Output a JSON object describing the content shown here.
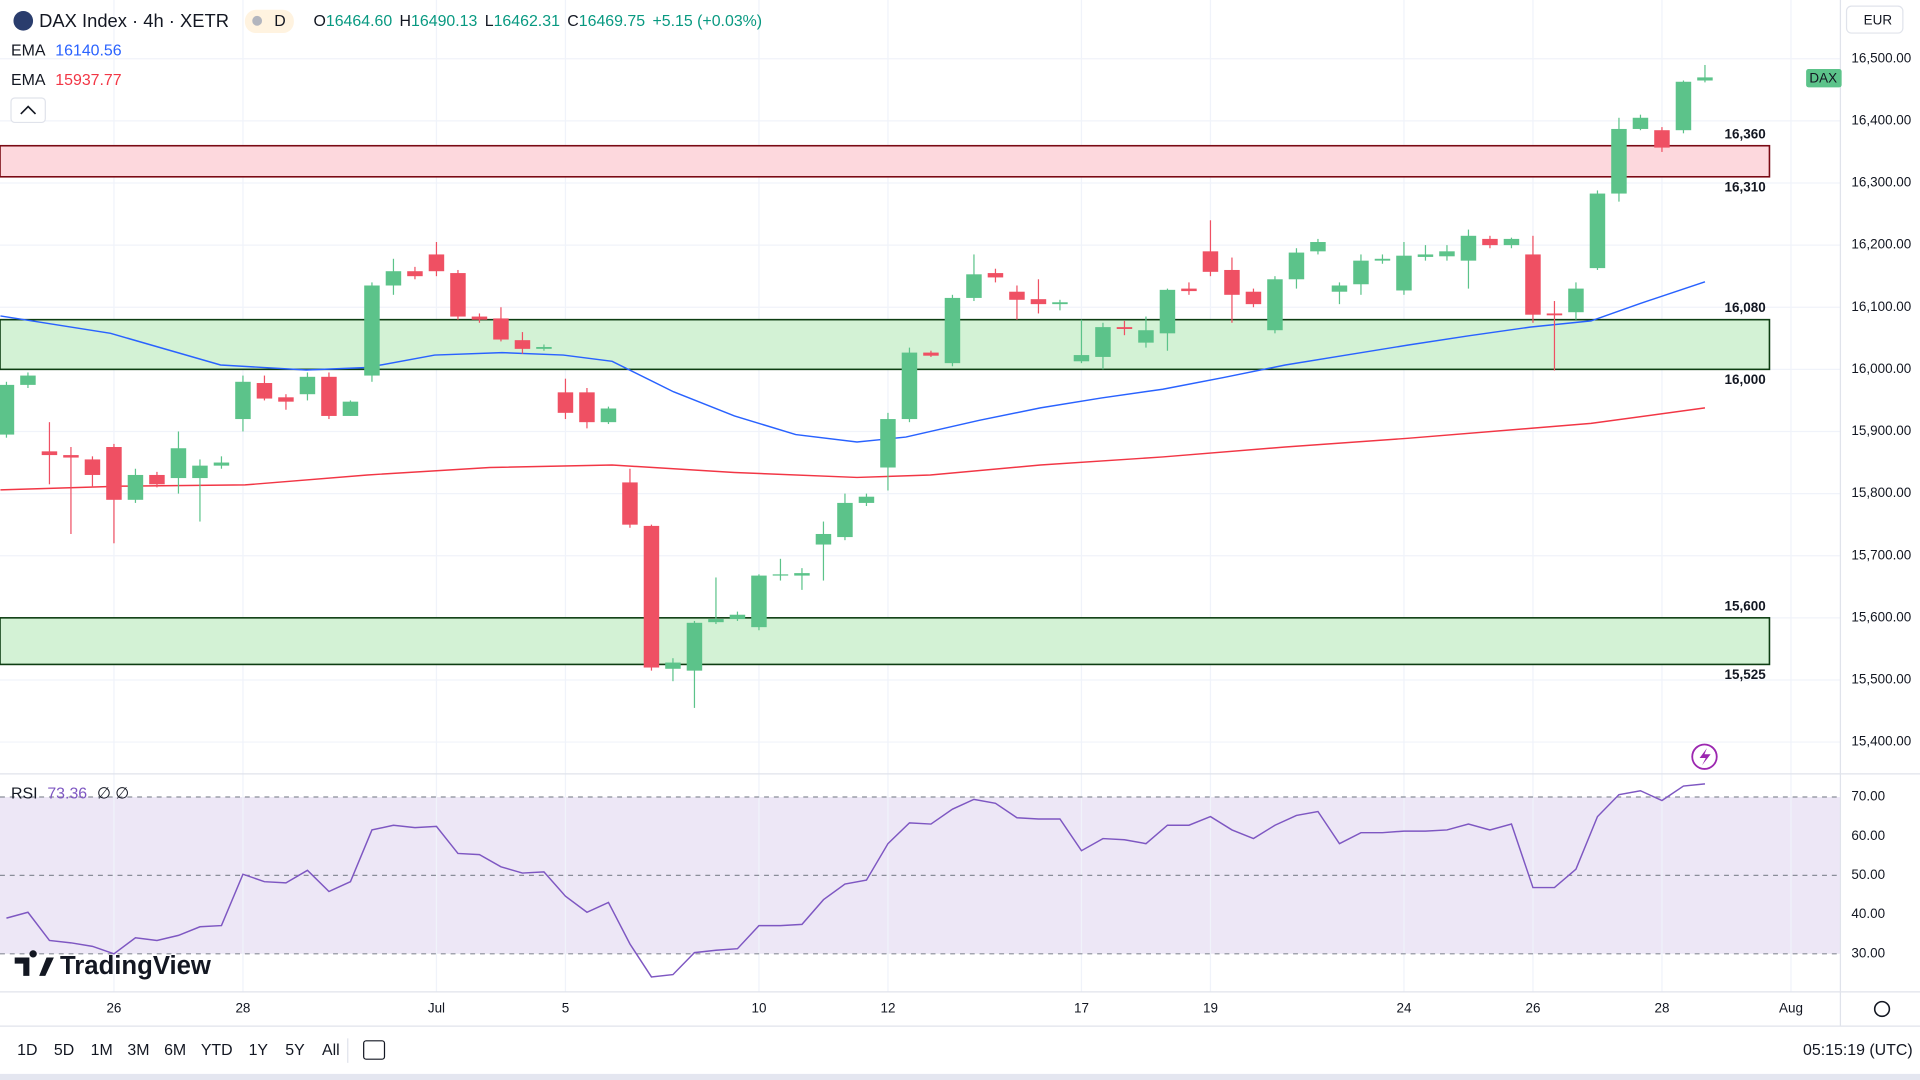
{
  "header": {
    "symbol": "DAX Index · 4h · XETR",
    "badge": "D",
    "ohlc": [
      {
        "label": "O",
        "value": "16464.60"
      },
      {
        "label": "H",
        "value": "16490.13"
      },
      {
        "label": "L",
        "value": "16462.31"
      },
      {
        "label": "C",
        "value": "16469.75"
      }
    ],
    "change": "+5.15 (+0.03%)",
    "currency": "EUR",
    "price_tag": "DAX"
  },
  "chart_data": [
    {
      "type": "candlestick",
      "up_color": "#5cc38a",
      "down_color": "#ef5063",
      "candles": [
        [
          15895,
          15980,
          15890,
          15975
        ],
        [
          15975,
          15995,
          15970,
          15990
        ],
        [
          15868,
          15915,
          15815,
          15862
        ],
        [
          15862,
          15875,
          15735,
          15858
        ],
        [
          15855,
          15860,
          15810,
          15830
        ],
        [
          15875,
          15880,
          15720,
          15790
        ],
        [
          15790,
          15840,
          15785,
          15830
        ],
        [
          15830,
          15835,
          15810,
          15815
        ],
        [
          15825,
          15900,
          15800,
          15873
        ],
        [
          15825,
          15855,
          15755,
          15845
        ],
        [
          15845,
          15860,
          15840,
          15850
        ],
        [
          15920,
          15990,
          15900,
          15980
        ],
        [
          15978,
          15990,
          15950,
          15953
        ],
        [
          15955,
          15960,
          15935,
          15948
        ],
        [
          15960,
          15995,
          15950,
          15988
        ],
        [
          15988,
          15995,
          15920,
          15925
        ],
        [
          15925,
          15950,
          15925,
          15948
        ],
        [
          15990,
          16140,
          15980,
          16135
        ],
        [
          16135,
          16178,
          16120,
          16158
        ],
        [
          16158,
          16165,
          16145,
          16150
        ],
        [
          16185,
          16205,
          16150,
          16158
        ],
        [
          16155,
          16160,
          16080,
          16085
        ],
        [
          16085,
          16090,
          16075,
          16080
        ],
        [
          16082,
          16100,
          16045,
          16048
        ],
        [
          16047,
          16060,
          16025,
          16033
        ],
        [
          16033,
          16040,
          16030,
          16036
        ],
        [
          15963,
          15985,
          15920,
          15930
        ],
        [
          15963,
          15970,
          15905,
          15915
        ],
        [
          15915,
          15940,
          15912,
          15937
        ],
        [
          15818,
          15840,
          15745,
          15750
        ],
        [
          15748,
          15750,
          15515,
          15520
        ],
        [
          15518,
          15535,
          15498,
          15528
        ],
        [
          15515,
          15595,
          15455,
          15592
        ],
        [
          15593,
          15665,
          15590,
          15598
        ],
        [
          15598,
          15610,
          15595,
          15605
        ],
        [
          15585,
          15670,
          15580,
          15668
        ],
        [
          15668,
          15695,
          15660,
          15670
        ],
        [
          15668,
          15680,
          15645,
          15672
        ],
        [
          15718,
          15755,
          15660,
          15735
        ],
        [
          15730,
          15800,
          15725,
          15785
        ],
        [
          15785,
          15800,
          15780,
          15795
        ],
        [
          15842,
          15930,
          15805,
          15920
        ],
        [
          15920,
          16035,
          15915,
          16027
        ],
        [
          16027,
          16030,
          16020,
          16022
        ],
        [
          16010,
          16120,
          16005,
          16115
        ],
        [
          16115,
          16185,
          16110,
          16153
        ],
        [
          16155,
          16162,
          16140,
          16148
        ],
        [
          16125,
          16135,
          16080,
          16112
        ],
        [
          16113,
          16145,
          16090,
          16105
        ],
        [
          16105,
          16112,
          16095,
          16108
        ],
        [
          16013,
          16080,
          16010,
          16023
        ],
        [
          16020,
          16075,
          16000,
          16068
        ],
        [
          16068,
          16078,
          16055,
          16065
        ],
        [
          16043,
          16085,
          16035,
          16063
        ],
        [
          16058,
          16130,
          16030,
          16128
        ],
        [
          16130,
          16140,
          16120,
          16126
        ],
        [
          16190,
          16240,
          16150,
          16157
        ],
        [
          16160,
          16180,
          16075,
          16120
        ],
        [
          16125,
          16130,
          16100,
          16105
        ],
        [
          16063,
          16150,
          16058,
          16145
        ],
        [
          16145,
          16195,
          16130,
          16188
        ],
        [
          16190,
          16210,
          16185,
          16205
        ],
        [
          16125,
          16140,
          16105,
          16135
        ],
        [
          16137,
          16185,
          16120,
          16175
        ],
        [
          16175,
          16185,
          16170,
          16178
        ],
        [
          16127,
          16205,
          16120,
          16183
        ],
        [
          16181,
          16200,
          16175,
          16185
        ],
        [
          16182,
          16200,
          16175,
          16190
        ],
        [
          16175,
          16225,
          16130,
          16215
        ],
        [
          16210,
          16215,
          16195,
          16200
        ],
        [
          16200,
          16212,
          16195,
          16210
        ],
        [
          16185,
          16215,
          16075,
          16088
        ],
        [
          16090,
          16110,
          15998,
          16087
        ],
        [
          16092,
          16140,
          16080,
          16130
        ],
        [
          16163,
          16288,
          16160,
          16283
        ],
        [
          16283,
          16405,
          16270,
          16387
        ],
        [
          16387,
          16410,
          16385,
          16405
        ],
        [
          16385,
          16390,
          16350,
          16357
        ],
        [
          16385,
          16465,
          16380,
          16463
        ],
        [
          16465,
          16490,
          16462,
          16470
        ]
      ],
      "series": [
        {
          "name": "EMA",
          "value_label": "16140.56",
          "color": "#2962ff",
          "x": [
            -0.28,
            4.84,
            9.96,
            13.94,
            16.79,
            19.92,
            23.05,
            25.9,
            28.17,
            31.02,
            33.86,
            36.71,
            39.56,
            41.83,
            45.25,
            48.09,
            50.94,
            53.78,
            56.63,
            59.48,
            62.32,
            65.17,
            68.01,
            70.86,
            73.7,
            75.98,
            79
          ],
          "values": [
            16086,
            16058,
            16007,
            15999,
            16003,
            16023,
            16027,
            16023,
            16013,
            15964,
            15925,
            15895,
            15883,
            15891,
            15918,
            15938,
            15954,
            15968,
            15987,
            16007,
            16023,
            16039,
            16054,
            16068,
            16078,
            16106,
            16141
          ]
        },
        {
          "name": "EMA",
          "value_label": "15937.77",
          "color": "#f23645",
          "x": [
            -0.28,
            5.41,
            11.1,
            16.79,
            22.48,
            28.17,
            33.86,
            39.56,
            42.97,
            48.09,
            53.78,
            59.48,
            65.17,
            70.86,
            73.7,
            79
          ],
          "values": [
            15806,
            15812,
            15814,
            15830,
            15842,
            15846,
            15834,
            15826,
            15830,
            15846,
            15859,
            15875,
            15889,
            15905,
            15913,
            15938
          ]
        }
      ],
      "zones": [
        {
          "low": 16310,
          "high": 16360,
          "low_label": "16,310",
          "high_label": "16,360",
          "fill": "#fdd8dd",
          "stroke": "#7a0a14"
        },
        {
          "low": 16000,
          "high": 16080,
          "low_label": "16,000",
          "high_label": "16,080",
          "fill": "#d3f2d5",
          "stroke": "#0d3d12"
        },
        {
          "low": 15525,
          "high": 15600,
          "low_label": "15,525",
          "high_label": "15,600",
          "fill": "#d3f2d5",
          "stroke": "#0d3d12"
        }
      ],
      "zone_end": 82,
      "last_price": 16469.75,
      "xlim": [
        -0.3,
        85.3
      ],
      "xticks": [
        {
          "value": 5,
          "label": "26"
        },
        {
          "value": 11,
          "label": "28"
        },
        {
          "value": 20,
          "label": "Jul"
        },
        {
          "value": 26,
          "label": "5"
        },
        {
          "value": 35,
          "label": "10"
        },
        {
          "value": 41,
          "label": "12"
        },
        {
          "value": 50,
          "label": "17"
        },
        {
          "value": 56,
          "label": "19"
        },
        {
          "value": 65,
          "label": "24"
        },
        {
          "value": 71,
          "label": "26"
        },
        {
          "value": 77,
          "label": "28"
        },
        {
          "value": 83,
          "label": "Aug"
        }
      ],
      "ylim": [
        15348.8,
        16594.6
      ],
      "yticks": [
        {
          "value": 15400,
          "label": "15,400.00"
        },
        {
          "value": 15500,
          "label": "15,500.00"
        },
        {
          "value": 15600,
          "label": "15,600.00"
        },
        {
          "value": 15700,
          "label": "15,700.00"
        },
        {
          "value": 15800,
          "label": "15,800.00"
        },
        {
          "value": 15900,
          "label": "15,900.00"
        },
        {
          "value": 16000,
          "label": "16,000.00"
        },
        {
          "value": 16100,
          "label": "16,100.00"
        },
        {
          "value": 16200,
          "label": "16,200.00"
        },
        {
          "value": 16300,
          "label": "16,300.00"
        },
        {
          "value": 16400,
          "label": "16,400.00"
        },
        {
          "value": 16500,
          "label": "16,500.00"
        }
      ],
      "grid": true
    },
    {
      "type": "line",
      "name": "RSI",
      "value_label": "73.36",
      "extra": "∅ ∅",
      "color": "#7e57c2",
      "band": [
        30,
        70
      ],
      "band_color": "#ede7f6",
      "values": [
        39.1,
        40.6,
        33.4,
        32.8,
        31.9,
        30.0,
        34.1,
        33.4,
        34.7,
        36.9,
        37.2,
        50.3,
        48.4,
        48.1,
        51.3,
        45.9,
        48.4,
        61.6,
        62.8,
        62.2,
        62.5,
        55.6,
        55.3,
        52.2,
        50.6,
        50.9,
        44.7,
        40.6,
        43.1,
        32.5,
        24.1,
        24.7,
        30.3,
        30.9,
        31.3,
        37.2,
        37.2,
        37.5,
        43.8,
        47.8,
        48.8,
        58.1,
        63.4,
        63.1,
        66.9,
        69.4,
        68.4,
        64.7,
        64.4,
        64.4,
        56.3,
        59.4,
        59.1,
        58.1,
        62.8,
        62.8,
        65.0,
        61.6,
        59.4,
        62.8,
        65.3,
        66.3,
        58.1,
        60.9,
        60.9,
        61.3,
        61.3,
        61.6,
        63.1,
        61.6,
        63.1,
        46.9,
        46.9,
        51.6,
        65.0,
        70.6,
        71.6,
        69.1,
        72.8,
        73.36
      ],
      "ylim": [
        20.3,
        75.9
      ],
      "yticks": [
        {
          "value": 30,
          "label": "30.00"
        },
        {
          "value": 40,
          "label": "40.00"
        },
        {
          "value": 50,
          "label": "50.00"
        },
        {
          "value": 60,
          "label": "60.00"
        },
        {
          "value": 70,
          "label": "70.00"
        }
      ],
      "dashed": [
        30,
        50,
        70
      ]
    }
  ],
  "toolbar": {
    "ranges": [
      "1D",
      "5D",
      "1M",
      "3M",
      "6M",
      "YTD",
      "1Y",
      "5Y",
      "All"
    ],
    "clock": "05:15:19 (UTC)",
    "brand": "TradingView"
  }
}
